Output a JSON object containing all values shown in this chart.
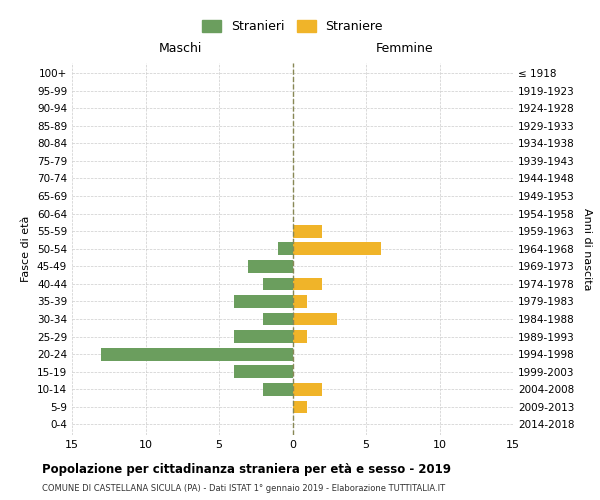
{
  "age_groups": [
    "0-4",
    "5-9",
    "10-14",
    "15-19",
    "20-24",
    "25-29",
    "30-34",
    "35-39",
    "40-44",
    "45-49",
    "50-54",
    "55-59",
    "60-64",
    "65-69",
    "70-74",
    "75-79",
    "80-84",
    "85-89",
    "90-94",
    "95-99",
    "100+"
  ],
  "birth_years": [
    "2014-2018",
    "2009-2013",
    "2004-2008",
    "1999-2003",
    "1994-1998",
    "1989-1993",
    "1984-1988",
    "1979-1983",
    "1974-1978",
    "1969-1973",
    "1964-1968",
    "1959-1963",
    "1954-1958",
    "1949-1953",
    "1944-1948",
    "1939-1943",
    "1934-1938",
    "1929-1933",
    "1924-1928",
    "1919-1923",
    "≤ 1918"
  ],
  "maschi": [
    0,
    0,
    2,
    4,
    13,
    4,
    2,
    4,
    2,
    3,
    1,
    0,
    0,
    0,
    0,
    0,
    0,
    0,
    0,
    0,
    0
  ],
  "femmine": [
    0,
    1,
    2,
    0,
    0,
    1,
    3,
    1,
    2,
    0,
    6,
    2,
    0,
    0,
    0,
    0,
    0,
    0,
    0,
    0,
    0
  ],
  "color_maschi": "#6b9e5e",
  "color_femmine": "#f0b429",
  "title": "Popolazione per cittadinanza straniera per età e sesso - 2019",
  "subtitle": "COMUNE DI CASTELLANA SICULA (PA) - Dati ISTAT 1° gennaio 2019 - Elaborazione TUTTITALIA.IT",
  "xlabel_left": "Maschi",
  "xlabel_right": "Femmine",
  "ylabel_left": "Fasce di età",
  "ylabel_right": "Anni di nascita",
  "legend_stranieri": "Stranieri",
  "legend_straniere": "Straniere",
  "xlim": 15,
  "background_color": "#ffffff",
  "grid_color": "#cccccc"
}
